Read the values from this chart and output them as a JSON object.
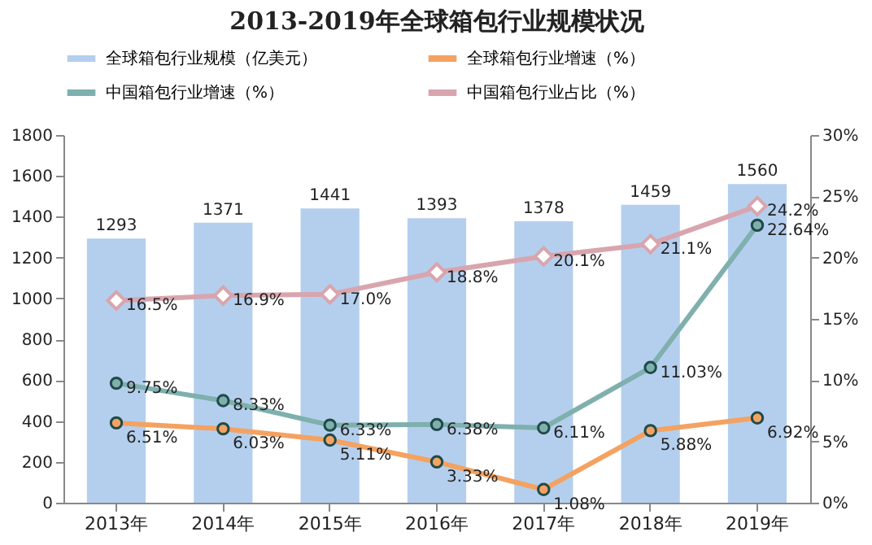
{
  "chart_data": {
    "type": "bar",
    "title": "2013-2019年全球箱包行业规模状况",
    "categories": [
      "2013年",
      "2014年",
      "2015年",
      "2016年",
      "2017年",
      "2018年",
      "2019年"
    ],
    "series": [
      {
        "name": "全球箱包行业规模（亿美元）",
        "type": "bar",
        "color": "#b4cfee",
        "values": [
          1293,
          1371,
          1441,
          1393,
          1378,
          1459,
          1560
        ],
        "value_labels": [
          "1293",
          "1371",
          "1441",
          "1393",
          "1378",
          "1459",
          "1560"
        ]
      },
      {
        "name": "全球箱包行业增速（%）",
        "type": "line",
        "axis": "y2",
        "color": "#f4a261",
        "marker": "circle",
        "values": [
          6.51,
          6.03,
          5.11,
          3.33,
          1.08,
          5.88,
          6.92
        ],
        "value_labels": [
          "6.51%",
          "6.03%",
          "5.11%",
          "3.33%",
          "1.08%",
          "5.88%",
          "6.92%"
        ]
      },
      {
        "name": "中国箱包行业增速（%）",
        "type": "line",
        "axis": "y2",
        "color": "#7fb0ad",
        "marker": "circle",
        "values": [
          9.75,
          8.33,
          6.33,
          6.38,
          6.11,
          11.03,
          22.64
        ],
        "value_labels": [
          "9.75%",
          "8.33%",
          "6.33%",
          "6.38%",
          "6.11%",
          "11.03%",
          "22.64%"
        ]
      },
      {
        "name": "中国箱包行业占比（%）",
        "type": "line",
        "axis": "y2",
        "color": "#d8a5ae",
        "marker": "diamond",
        "values": [
          16.5,
          16.9,
          17.0,
          18.8,
          20.1,
          21.1,
          24.2
        ],
        "value_labels": [
          "16.5%",
          "16.9%",
          "17.0%",
          "18.8%",
          "20.1%",
          "21.1%",
          "24.2%"
        ]
      }
    ],
    "ylim": [
      0,
      1800
    ],
    "yticks": [
      0,
      200,
      400,
      600,
      800,
      1000,
      1200,
      1400,
      1600,
      1800
    ],
    "y2lim": [
      0,
      30
    ],
    "y2ticks": [
      {
        "value": 0,
        "label": "0%"
      },
      {
        "value": 5,
        "label": "5%"
      },
      {
        "value": 10,
        "label": "10%"
      },
      {
        "value": 15,
        "label": "15%"
      },
      {
        "value": 20,
        "label": "20%"
      },
      {
        "value": 25,
        "label": "25%"
      },
      {
        "value": 30,
        "label": "30%"
      }
    ],
    "grid": false,
    "legend": "top"
  }
}
